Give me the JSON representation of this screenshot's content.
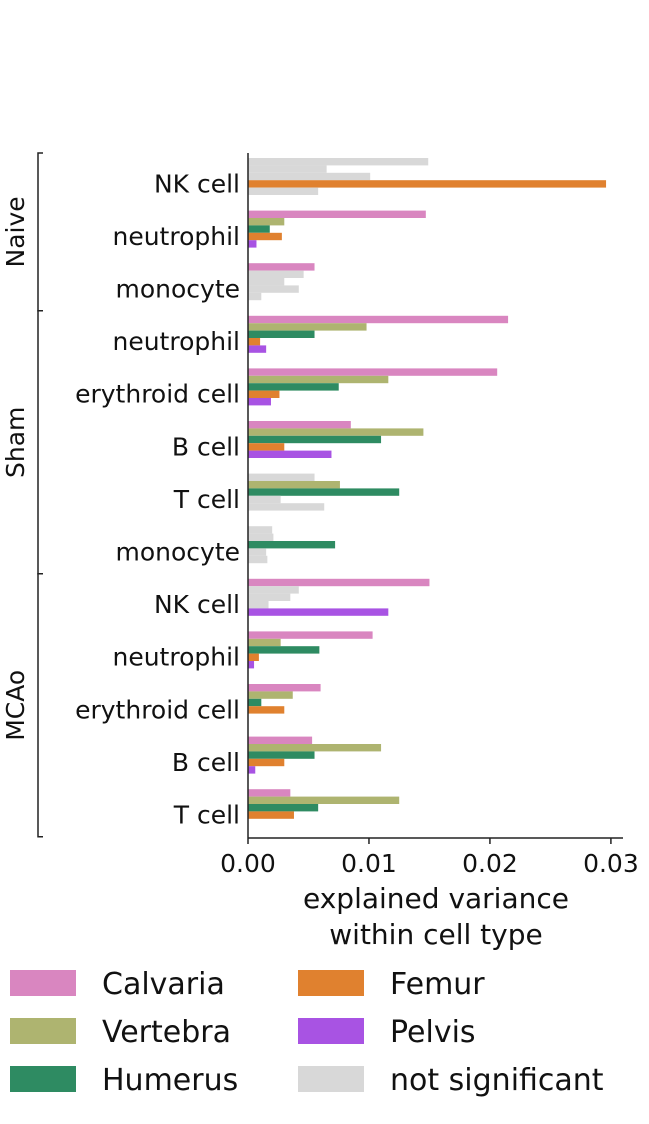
{
  "chart_data": {
    "type": "bar",
    "orientation": "horizontal",
    "xlabel": [
      "explained variance",
      "within cell type"
    ],
    "xlim": [
      0,
      0.031
    ],
    "xticks": [
      0,
      0.01,
      0.02,
      0.03
    ],
    "xtick_labels": [
      "0.00",
      "0.01",
      "0.02",
      "0.03"
    ],
    "legend_position": "bottom",
    "series_order": [
      "Calvaria",
      "Vertebra",
      "Humerus",
      "Femur",
      "Pelvis"
    ],
    "legend": [
      {
        "label": "Calvaria",
        "color": "#d986c0"
      },
      {
        "label": "Femur",
        "color": "#e0812f"
      },
      {
        "label": "Vertebra",
        "color": "#aeb470"
      },
      {
        "label": "Pelvis",
        "color": "#a853e3"
      },
      {
        "label": "Humerus",
        "color": "#2e8b62"
      },
      {
        "label": "not significant",
        "color": "#d8d8d8"
      }
    ],
    "groups": [
      {
        "name": "Naive",
        "categories": [
          {
            "label": "NK cell",
            "bars": [
              {
                "series": "Calvaria",
                "value": 0.0149,
                "significant": false
              },
              {
                "series": "Vertebra",
                "value": 0.0065,
                "significant": false
              },
              {
                "series": "Humerus",
                "value": 0.0101,
                "significant": false
              },
              {
                "series": "Femur",
                "value": 0.0296,
                "significant": true
              },
              {
                "series": "Pelvis",
                "value": 0.0058,
                "significant": false
              }
            ]
          },
          {
            "label": "neutrophil",
            "bars": [
              {
                "series": "Calvaria",
                "value": 0.0147,
                "significant": true
              },
              {
                "series": "Vertebra",
                "value": 0.003,
                "significant": true
              },
              {
                "series": "Humerus",
                "value": 0.0018,
                "significant": true
              },
              {
                "series": "Femur",
                "value": 0.0028,
                "significant": true
              },
              {
                "series": "Pelvis",
                "value": 0.0007,
                "significant": true
              }
            ]
          },
          {
            "label": "monocyte",
            "bars": [
              {
                "series": "Calvaria",
                "value": 0.0055,
                "significant": true
              },
              {
                "series": "Vertebra",
                "value": 0.0046,
                "significant": false
              },
              {
                "series": "Humerus",
                "value": 0.003,
                "significant": false
              },
              {
                "series": "Femur",
                "value": 0.0042,
                "significant": false
              },
              {
                "series": "Pelvis",
                "value": 0.0011,
                "significant": false
              }
            ]
          }
        ]
      },
      {
        "name": "Sham",
        "categories": [
          {
            "label": "neutrophil",
            "bars": [
              {
                "series": "Calvaria",
                "value": 0.0215,
                "significant": true
              },
              {
                "series": "Vertebra",
                "value": 0.0098,
                "significant": true
              },
              {
                "series": "Humerus",
                "value": 0.0055,
                "significant": true
              },
              {
                "series": "Femur",
                "value": 0.001,
                "significant": true
              },
              {
                "series": "Pelvis",
                "value": 0.0015,
                "significant": true
              }
            ]
          },
          {
            "label": "erythroid cell",
            "bars": [
              {
                "series": "Calvaria",
                "value": 0.0206,
                "significant": true
              },
              {
                "series": "Vertebra",
                "value": 0.0116,
                "significant": true
              },
              {
                "series": "Humerus",
                "value": 0.0075,
                "significant": true
              },
              {
                "series": "Femur",
                "value": 0.0026,
                "significant": true
              },
              {
                "series": "Pelvis",
                "value": 0.0019,
                "significant": true
              }
            ]
          },
          {
            "label": "B cell",
            "bars": [
              {
                "series": "Calvaria",
                "value": 0.0085,
                "significant": true
              },
              {
                "series": "Vertebra",
                "value": 0.0145,
                "significant": true
              },
              {
                "series": "Humerus",
                "value": 0.011,
                "significant": true
              },
              {
                "series": "Femur",
                "value": 0.003,
                "significant": true
              },
              {
                "series": "Pelvis",
                "value": 0.0069,
                "significant": true
              }
            ]
          },
          {
            "label": "T cell",
            "bars": [
              {
                "series": "Calvaria",
                "value": 0.0055,
                "significant": false
              },
              {
                "series": "Vertebra",
                "value": 0.0076,
                "significant": true
              },
              {
                "series": "Humerus",
                "value": 0.0125,
                "significant": true
              },
              {
                "series": "Femur",
                "value": 0.0027,
                "significant": false
              },
              {
                "series": "Pelvis",
                "value": 0.0063,
                "significant": false
              }
            ]
          },
          {
            "label": "monocyte",
            "bars": [
              {
                "series": "Calvaria",
                "value": 0.002,
                "significant": false
              },
              {
                "series": "Vertebra",
                "value": 0.0021,
                "significant": false
              },
              {
                "series": "Humerus",
                "value": 0.0072,
                "significant": true
              },
              {
                "series": "Femur",
                "value": 0.0015,
                "significant": false
              },
              {
                "series": "Pelvis",
                "value": 0.0016,
                "significant": false
              }
            ]
          }
        ]
      },
      {
        "name": "MCAo",
        "categories": [
          {
            "label": "NK cell",
            "bars": [
              {
                "series": "Calvaria",
                "value": 0.015,
                "significant": true
              },
              {
                "series": "Vertebra",
                "value": 0.0042,
                "significant": false
              },
              {
                "series": "Humerus",
                "value": 0.0035,
                "significant": false
              },
              {
                "series": "Femur",
                "value": 0.0017,
                "significant": false
              },
              {
                "series": "Pelvis",
                "value": 0.0116,
                "significant": true
              }
            ]
          },
          {
            "label": "neutrophil",
            "bars": [
              {
                "series": "Calvaria",
                "value": 0.0103,
                "significant": true
              },
              {
                "series": "Vertebra",
                "value": 0.0027,
                "significant": true
              },
              {
                "series": "Humerus",
                "value": 0.0059,
                "significant": true
              },
              {
                "series": "Femur",
                "value": 0.0009,
                "significant": true
              },
              {
                "series": "Pelvis",
                "value": 0.0005,
                "significant": true
              }
            ]
          },
          {
            "label": "erythroid cell",
            "bars": [
              {
                "series": "Calvaria",
                "value": 0.006,
                "significant": true
              },
              {
                "series": "Vertebra",
                "value": 0.0037,
                "significant": true
              },
              {
                "series": "Humerus",
                "value": 0.0011,
                "significant": true
              },
              {
                "series": "Femur",
                "value": 0.003,
                "significant": true
              },
              {
                "series": "Pelvis",
                "value": 0,
                "significant": true
              }
            ]
          },
          {
            "label": "B cell",
            "bars": [
              {
                "series": "Calvaria",
                "value": 0.0053,
                "significant": true
              },
              {
                "series": "Vertebra",
                "value": 0.011,
                "significant": true
              },
              {
                "series": "Humerus",
                "value": 0.0055,
                "significant": true
              },
              {
                "series": "Femur",
                "value": 0.003,
                "significant": true
              },
              {
                "series": "Pelvis",
                "value": 0.0006,
                "significant": true
              }
            ]
          },
          {
            "label": "T cell",
            "bars": [
              {
                "series": "Calvaria",
                "value": 0.0035,
                "significant": true
              },
              {
                "series": "Vertebra",
                "value": 0.0125,
                "significant": true
              },
              {
                "series": "Humerus",
                "value": 0.0058,
                "significant": true
              },
              {
                "series": "Femur",
                "value": 0.0038,
                "significant": true
              },
              {
                "series": "Pelvis",
                "value": 0,
                "significant": true
              }
            ]
          }
        ]
      }
    ]
  }
}
